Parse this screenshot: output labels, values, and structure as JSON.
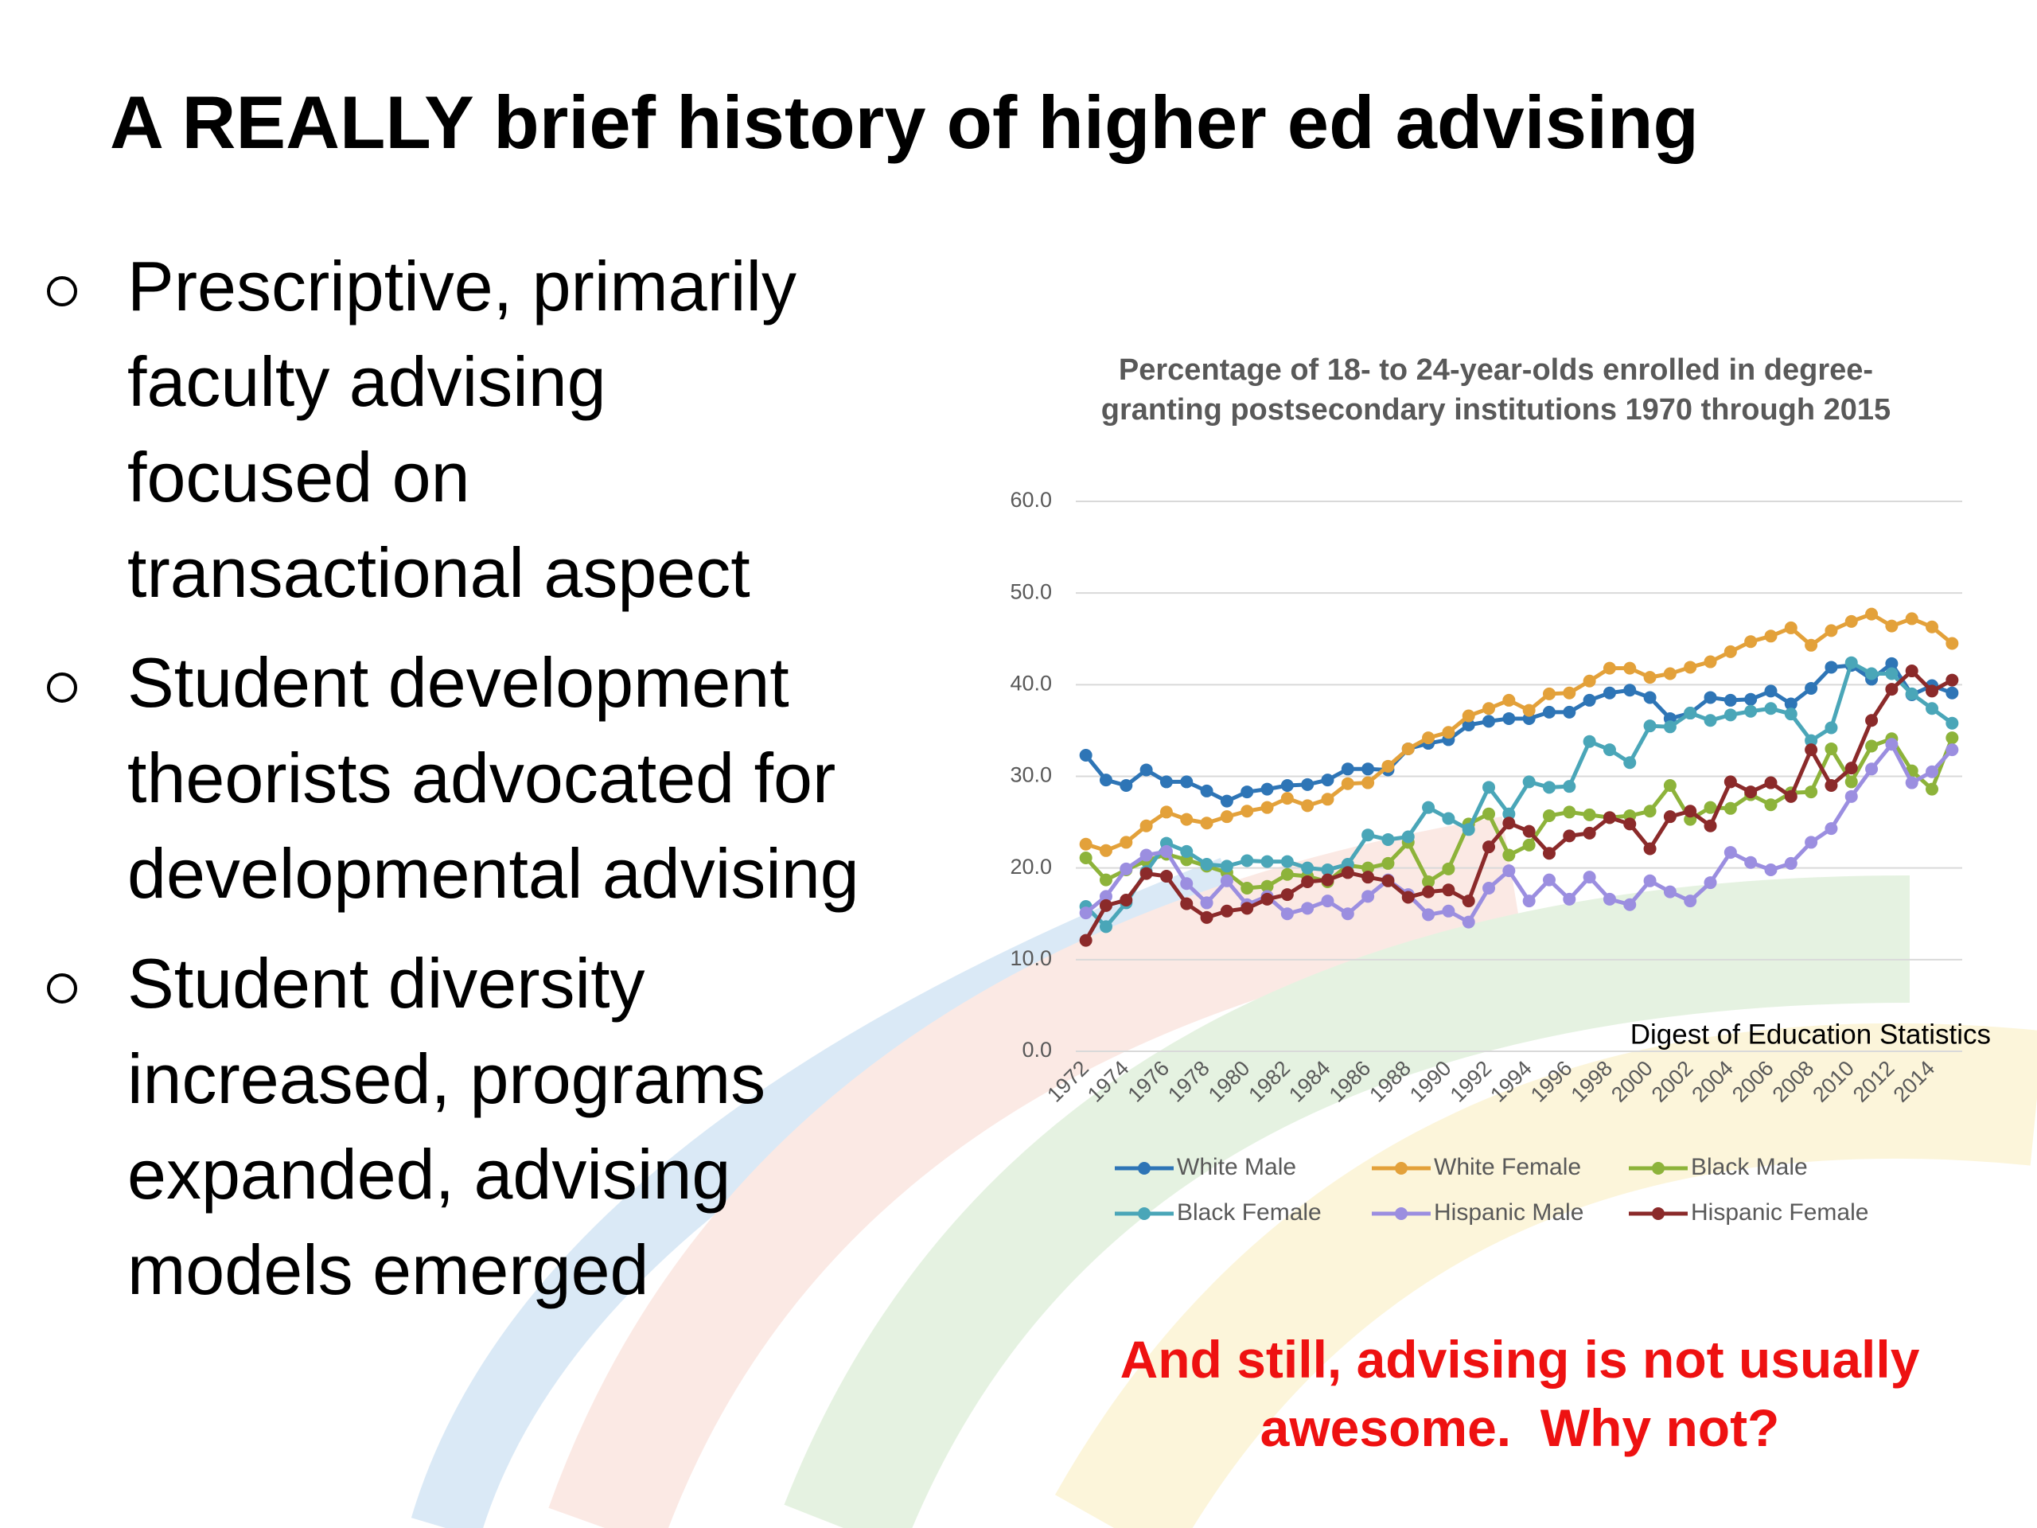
{
  "slide": {
    "title": "A REALLY brief history of higher ed advising",
    "bullets": [
      [
        "Prescriptive, primarily",
        "faculty advising",
        "focused on",
        "transactional aspect"
      ],
      [
        "Student development",
        "theorists advocated for",
        "developmental advising"
      ],
      [
        "Student diversity",
        "increased, programs",
        "expanded, advising",
        "models emerged"
      ]
    ],
    "callout": "And still, advising is not usually awesome.  Why not?"
  },
  "chart_data": {
    "type": "line",
    "title": "Percentage of 18- to 24-year-olds enrolled in degree-granting postsecondary institutions 1970 through 2015",
    "source": "Digest of Education Statistics",
    "categories": [
      "1972",
      null,
      "1974",
      null,
      "1976",
      null,
      "1978",
      null,
      "1980",
      null,
      "1982",
      null,
      "1984",
      null,
      "1986",
      null,
      "1988",
      null,
      "1990",
      null,
      "1992",
      null,
      "1994",
      null,
      "1996",
      null,
      "1998",
      null,
      "2000",
      null,
      "2002",
      null,
      "2004",
      null,
      "2006",
      null,
      "2008",
      null,
      "2010",
      null,
      "2012",
      null,
      "2014",
      null
    ],
    "series": [
      {
        "name": "White Male",
        "color": "#2e75b6",
        "values": [
          32.3,
          29.6,
          29.0,
          30.7,
          29.4,
          29.4,
          28.4,
          27.3,
          28.3,
          28.6,
          29.0,
          29.1,
          29.6,
          30.8,
          30.8,
          30.7,
          33.0,
          33.6,
          34.0,
          35.6,
          36.0,
          36.3,
          36.3,
          37.0,
          37.0,
          38.3,
          39.1,
          39.4,
          38.6,
          36.3,
          36.9,
          38.6,
          38.3,
          38.4,
          39.3,
          37.9,
          39.6,
          41.9,
          42.1,
          40.6,
          42.3,
          38.9,
          39.9,
          39.1
        ]
      },
      {
        "name": "White Female",
        "color": "#e3a13a",
        "values": [
          22.6,
          21.9,
          22.8,
          24.6,
          26.1,
          25.3,
          24.9,
          25.6,
          26.2,
          26.6,
          27.6,
          26.8,
          27.5,
          29.2,
          29.3,
          31.1,
          33.0,
          34.2,
          34.8,
          36.6,
          37.4,
          38.3,
          37.2,
          39.0,
          39.1,
          40.4,
          41.8,
          41.8,
          40.8,
          41.2,
          41.9,
          42.5,
          43.6,
          44.7,
          45.3,
          46.2,
          44.3,
          45.9,
          46.9,
          47.7,
          46.4,
          47.2,
          46.3,
          44.5
        ]
      },
      {
        "name": "Black Male",
        "color": "#8db33a",
        "values": [
          21.1,
          18.7,
          19.8,
          20.8,
          21.5,
          20.9,
          20.2,
          19.5,
          17.8,
          18.0,
          19.3,
          19.1,
          18.5,
          20.3,
          20.0,
          20.5,
          22.8,
          18.5,
          19.9,
          24.8,
          25.9,
          21.4,
          22.5,
          25.7,
          26.1,
          25.8,
          25.5,
          25.7,
          26.2,
          29.0,
          25.3,
          26.6,
          26.5,
          28.0,
          26.9,
          28.2,
          28.3,
          33.0,
          29.4,
          33.3,
          34.1,
          30.6,
          28.6,
          34.2
        ]
      },
      {
        "name": "Black Female",
        "color": "#4aa6b8",
        "values": [
          15.8,
          13.6,
          16.2,
          19.6,
          22.7,
          21.8,
          20.4,
          20.2,
          20.8,
          20.7,
          20.7,
          20.0,
          19.8,
          20.4,
          23.6,
          23.1,
          23.4,
          26.6,
          25.4,
          24.2,
          28.8,
          25.9,
          29.4,
          28.8,
          28.9,
          33.8,
          32.9,
          31.5,
          35.5,
          35.4,
          36.9,
          36.1,
          36.7,
          37.1,
          37.4,
          36.8,
          33.9,
          35.3,
          42.4,
          41.2,
          41.2,
          39.0,
          37.4,
          35.8
        ]
      },
      {
        "name": "Hispanic Male",
        "color": "#9b8ee0",
        "values": [
          15.1,
          16.9,
          19.9,
          21.4,
          21.8,
          18.3,
          16.2,
          18.6,
          16.0,
          16.9,
          15.0,
          15.6,
          16.4,
          15.0,
          16.9,
          18.7,
          17.1,
          14.9,
          15.3,
          14.1,
          17.8,
          19.7,
          16.4,
          18.7,
          16.6,
          19.0,
          16.6,
          16.0,
          18.6,
          17.4,
          16.4,
          18.4,
          21.7,
          20.6,
          19.8,
          20.5,
          22.8,
          24.3,
          27.8,
          30.8,
          33.5,
          29.3,
          30.5,
          32.9
        ]
      },
      {
        "name": "Hispanic Female",
        "color": "#8b2a2a",
        "values": [
          12.1,
          15.9,
          16.5,
          19.4,
          19.1,
          16.1,
          14.6,
          15.3,
          15.6,
          16.6,
          17.1,
          18.5,
          18.7,
          19.5,
          19.0,
          18.6,
          16.8,
          17.4,
          17.6,
          16.4,
          22.3,
          24.9,
          24.0,
          21.6,
          23.5,
          23.8,
          25.5,
          24.8,
          22.1,
          25.6,
          26.2,
          24.6,
          29.4,
          28.3,
          29.3,
          27.8,
          32.9,
          29.0,
          30.9,
          36.1,
          39.5,
          41.5,
          39.3,
          40.5
        ]
      }
    ],
    "ylim": [
      0,
      60
    ],
    "yticks": [
      {
        "value": 0,
        "label": "0.0"
      },
      {
        "value": 10,
        "label": "10.0"
      },
      {
        "value": 20,
        "label": "20.0"
      },
      {
        "value": 30,
        "label": "30.0"
      },
      {
        "value": 40,
        "label": "40.0"
      },
      {
        "value": 50,
        "label": "50.0"
      },
      {
        "value": 60,
        "label": "60.0"
      }
    ],
    "grid": true
  }
}
